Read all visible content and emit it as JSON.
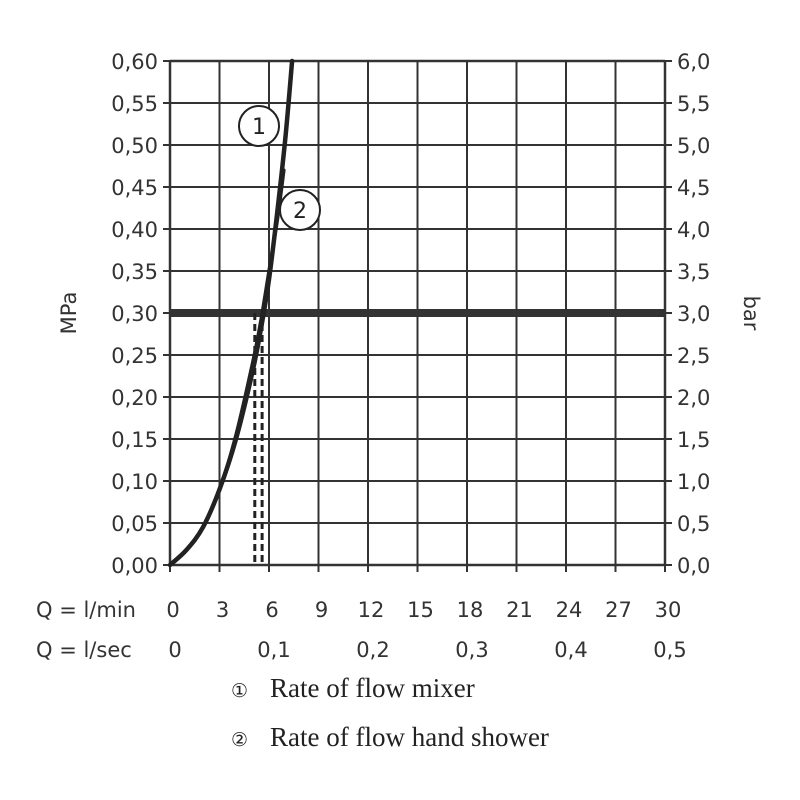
{
  "chart_data": {
    "type": "line",
    "title": "",
    "y_left_label": "MPa",
    "y_right_label": "bar",
    "y_left_ticks": [
      "0,00",
      "0,05",
      "0,10",
      "0,15",
      "0,20",
      "0,25",
      "0,30",
      "0,35",
      "0,40",
      "0,45",
      "0,50",
      "0,55",
      "0,60"
    ],
    "y_right_ticks": [
      "0,0",
      "0,5",
      "1,0",
      "1,5",
      "2,0",
      "2,5",
      "3,0",
      "3,5",
      "4,0",
      "4,5",
      "5,0",
      "5,5",
      "6,0"
    ],
    "ylim": [
      0,
      0.6
    ],
    "xlim": [
      0,
      30
    ],
    "x_row1_label": "Q = l/min",
    "x_row1_ticks": [
      "0",
      "3",
      "6",
      "9",
      "12",
      "15",
      "18",
      "21",
      "24",
      "27",
      "30"
    ],
    "x_row2_label": "Q = l/sec",
    "x_row2_ticks": [
      "0",
      "0,1",
      "0,2",
      "0,3",
      "0,4",
      "0,5"
    ],
    "reference_pressure": 0.3,
    "series": [
      {
        "name": "Rate of flow mixer",
        "marker": "1",
        "x": [
          0,
          1,
          2,
          3,
          4,
          5,
          5.5,
          6,
          6.5,
          7,
          7.4
        ],
        "y": [
          0,
          0.018,
          0.045,
          0.09,
          0.15,
          0.23,
          0.28,
          0.34,
          0.42,
          0.51,
          0.6
        ]
      },
      {
        "name": "Rate of flow hand shower",
        "marker": "2",
        "x": [
          0,
          1,
          2,
          3,
          4,
          5,
          5.5,
          6,
          6.5,
          6.9
        ],
        "y": [
          0,
          0.018,
          0.045,
          0.09,
          0.155,
          0.24,
          0.29,
          0.35,
          0.41,
          0.47
        ]
      }
    ],
    "operating_points": [
      {
        "series": "1",
        "x": 5.4,
        "y": 0.3
      },
      {
        "series": "2",
        "x": 5.2,
        "y": 0.3
      }
    ],
    "legend": [
      {
        "marker": "①",
        "label": "Rate of flow mixer"
      },
      {
        "marker": "②",
        "label": "Rate of flow hand shower"
      }
    ]
  },
  "colors": {
    "grid": "#333333",
    "curve": "#222222",
    "reference": "#333333",
    "text": "#333333"
  }
}
